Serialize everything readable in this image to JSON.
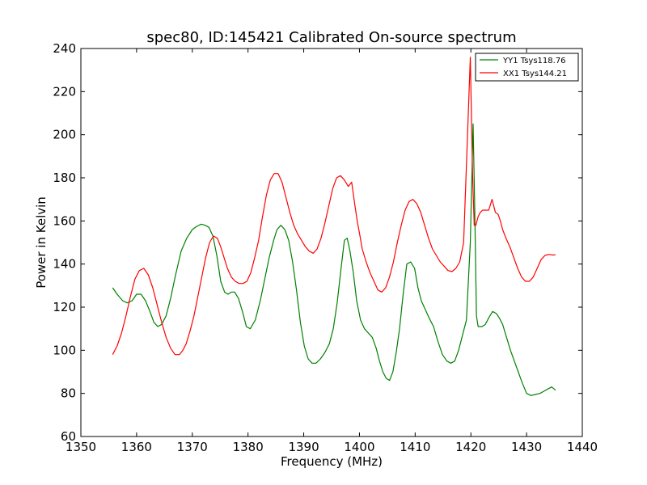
{
  "chart_data": {
    "type": "line",
    "title": "spec80, ID:145421 Calibrated On-source spectrum",
    "xlabel": "Frequency (MHz)",
    "ylabel": "Power in Kelvin",
    "xlim": [
      1350,
      1440
    ],
    "ylim": [
      60,
      240
    ],
    "xticks": [
      1350,
      1360,
      1370,
      1380,
      1390,
      1400,
      1410,
      1420,
      1430,
      1440
    ],
    "yticks": [
      60,
      80,
      100,
      120,
      140,
      160,
      180,
      200,
      220,
      240
    ],
    "grid": false,
    "legend_position": "top-right",
    "series": [
      {
        "name": "YY1 Tsys118.76",
        "color": "#008000",
        "x": [
          1355.7,
          1356.5,
          1357.5,
          1358.3,
          1359.2,
          1360.0,
          1360.8,
          1361.6,
          1362.4,
          1363.1,
          1363.8,
          1364.5,
          1365.3,
          1366.1,
          1367.0,
          1368.0,
          1369.0,
          1370.0,
          1370.8,
          1371.6,
          1372.3,
          1373.0,
          1373.7,
          1374.4,
          1375.1,
          1375.8,
          1376.4,
          1377.0,
          1377.6,
          1378.3,
          1379.0,
          1379.7,
          1380.4,
          1381.3,
          1382.2,
          1383.0,
          1383.8,
          1384.6,
          1385.2,
          1385.9,
          1386.6,
          1387.3,
          1388.0,
          1388.7,
          1389.4,
          1390.1,
          1390.8,
          1391.5,
          1392.2,
          1393.0,
          1393.8,
          1394.6,
          1395.3,
          1396.0,
          1396.7,
          1397.3,
          1397.8,
          1398.3,
          1398.9,
          1399.5,
          1400.2,
          1400.9,
          1401.6,
          1402.3,
          1403.0,
          1403.6,
          1404.2,
          1404.8,
          1405.4,
          1406.0,
          1406.6,
          1407.2,
          1407.8,
          1408.5,
          1409.2,
          1409.9,
          1410.5,
          1411.1,
          1411.8,
          1412.5,
          1413.3,
          1414.1,
          1414.9,
          1415.7,
          1416.4,
          1417.1,
          1417.8,
          1418.5,
          1419.2,
          1419.9,
          1420.4,
          1420.7,
          1421.0,
          1421.3,
          1421.6,
          1422.0,
          1422.6,
          1423.2,
          1423.9,
          1424.6,
          1425.1,
          1425.7,
          1426.4,
          1427.1,
          1427.8,
          1428.5,
          1429.2,
          1430.0,
          1430.8,
          1431.6,
          1432.4,
          1433.1,
          1433.8,
          1434.5,
          1435.2
        ],
        "y": [
          129,
          126,
          123,
          122,
          123,
          126,
          126,
          123,
          118,
          113,
          111,
          112,
          116,
          124,
          135,
          146,
          152,
          156,
          157.5,
          158.5,
          158,
          157,
          153,
          144,
          132,
          127,
          126,
          127,
          127,
          124,
          118,
          111,
          110,
          114,
          123,
          133,
          143,
          151,
          156,
          158,
          156,
          151,
          141,
          128,
          113,
          102,
          96,
          94,
          94,
          96,
          99,
          103,
          110,
          122,
          138,
          151,
          152,
          146,
          136,
          123,
          114,
          110,
          108,
          106,
          101,
          95,
          90,
          87,
          86,
          90,
          99,
          110,
          125,
          140,
          141,
          138,
          129,
          123,
          119,
          115,
          111,
          104,
          98,
          95,
          94,
          95,
          100,
          107,
          114,
          150,
          205,
          165,
          116,
          111,
          111,
          111,
          112,
          115,
          118,
          117,
          115,
          112,
          106,
          100,
          95,
          90,
          85,
          80,
          79,
          79.5,
          80,
          81,
          82,
          83,
          81.5
        ]
      },
      {
        "name": "XX1 Tsys144.21",
        "color": "#ff0000",
        "x": [
          1355.7,
          1356.5,
          1357.3,
          1358.1,
          1358.9,
          1359.7,
          1360.5,
          1361.3,
          1362.1,
          1362.9,
          1363.7,
          1364.5,
          1365.3,
          1366.1,
          1366.9,
          1367.7,
          1368.3,
          1368.9,
          1369.6,
          1370.3,
          1371.0,
          1371.7,
          1372.4,
          1373.1,
          1373.8,
          1374.5,
          1375.1,
          1375.7,
          1376.3,
          1377.0,
          1377.7,
          1378.4,
          1379.1,
          1379.8,
          1380.5,
          1381.2,
          1381.9,
          1382.6,
          1383.3,
          1384.0,
          1384.7,
          1385.4,
          1386.1,
          1386.8,
          1387.5,
          1388.2,
          1388.9,
          1389.6,
          1390.3,
          1391.0,
          1391.7,
          1392.4,
          1393.1,
          1393.8,
          1394.5,
          1395.2,
          1395.9,
          1396.6,
          1397.3,
          1398.0,
          1398.6,
          1399.2,
          1399.6,
          1400.1,
          1400.5,
          1401.2,
          1401.9,
          1402.6,
          1403.3,
          1404.0,
          1404.7,
          1405.4,
          1406.1,
          1406.8,
          1407.5,
          1408.2,
          1408.9,
          1409.6,
          1410.3,
          1411.0,
          1411.7,
          1412.4,
          1413.1,
          1413.8,
          1414.5,
          1415.2,
          1415.9,
          1416.6,
          1417.3,
          1418.0,
          1418.7,
          1419.4,
          1419.9,
          1420.3,
          1420.6,
          1420.9,
          1421.3,
          1421.7,
          1422.1,
          1422.6,
          1423.2,
          1423.8,
          1424.4,
          1424.9,
          1425.3,
          1425.7,
          1426.3,
          1427.0,
          1427.7,
          1428.4,
          1429.1,
          1429.8,
          1430.5,
          1431.2,
          1431.9,
          1432.6,
          1433.3,
          1434.0,
          1434.6,
          1435.2
        ],
        "y": [
          98,
          102,
          108,
          116,
          125,
          133,
          137,
          138,
          135,
          129,
          121,
          113,
          106,
          101,
          98,
          98,
          100,
          103,
          109,
          116,
          125,
          134,
          143,
          150,
          153,
          152,
          148,
          143,
          138,
          134,
          132,
          131,
          131,
          132,
          136,
          143,
          151,
          162,
          172,
          179,
          182,
          182,
          178,
          171,
          164,
          158,
          154,
          151,
          148,
          146,
          145,
          147,
          152,
          159,
          167,
          175,
          180,
          181,
          179,
          176,
          178,
          167,
          160,
          153,
          147,
          141,
          136,
          132,
          128,
          127,
          129,
          134,
          141,
          150,
          158,
          165,
          169,
          170,
          168,
          164,
          158,
          152,
          147,
          144,
          141,
          139,
          137,
          136.5,
          138,
          141,
          150,
          200,
          236,
          182,
          158,
          158,
          162,
          164,
          165,
          165,
          165,
          170,
          164,
          163,
          160,
          156,
          152,
          148,
          143,
          138,
          134,
          132,
          132,
          134,
          138,
          142,
          144,
          144.5,
          144.2,
          144.3
        ]
      }
    ]
  }
}
